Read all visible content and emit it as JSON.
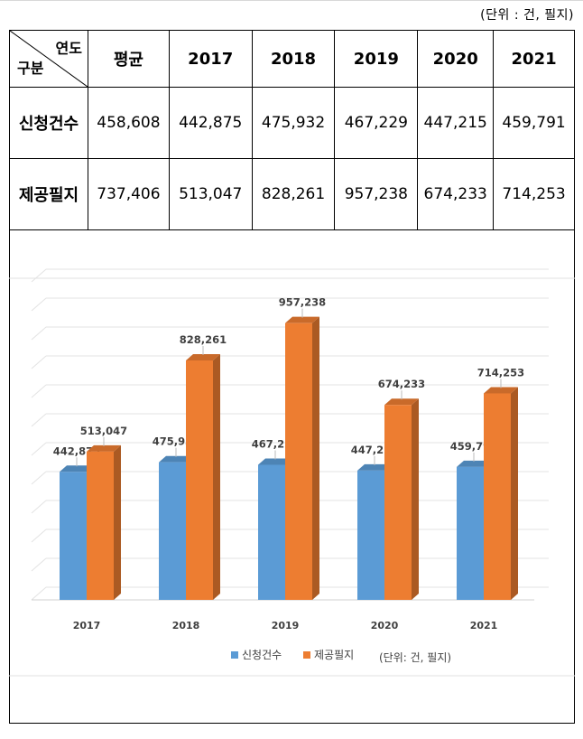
{
  "unit_note": "(단위 : 건, 필지)",
  "table": {
    "corner_top": "연도",
    "corner_bottom": "구분",
    "columns": [
      "평균",
      "2017",
      "2018",
      "2019",
      "2020",
      "2021"
    ],
    "rows": [
      {
        "label": "신청건수",
        "values": [
          "458,608",
          "442,875",
          "475,932",
          "467,229",
          "447,215",
          "459,791"
        ]
      },
      {
        "label": "제공필지",
        "values": [
          "737,406",
          "513,047",
          "828,261",
          "957,238",
          "674,233",
          "714,253"
        ]
      }
    ]
  },
  "chart_data": {
    "type": "bar",
    "categories": [
      "2017",
      "2018",
      "2019",
      "2020",
      "2021"
    ],
    "series": [
      {
        "name": "신청건수",
        "values": [
          442875,
          475932,
          467229,
          447215,
          459791
        ],
        "labels": [
          "442,875",
          "475,932",
          "467,229",
          "447,215",
          "459,791"
        ],
        "color": "#5b9bd5"
      },
      {
        "name": "제공필지",
        "values": [
          513047,
          828261,
          957238,
          674233,
          714253
        ],
        "labels": [
          "513,047",
          "828,261",
          "957,238",
          "674,233",
          "714,253"
        ],
        "color": "#ed7d31"
      }
    ],
    "ylim": [
      0,
      1100000
    ],
    "grid": true,
    "legend": "bottom",
    "legend_note": "(단위: 건, 필지)"
  }
}
